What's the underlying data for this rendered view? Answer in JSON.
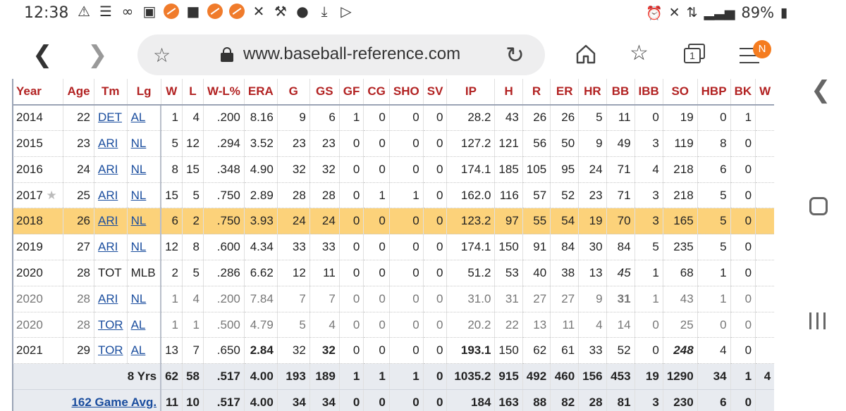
{
  "status_bar": {
    "time": "12:38",
    "battery": "89%"
  },
  "browser": {
    "url": "www.baseball-reference.com",
    "menu_badge": "N",
    "tabs_count": "1"
  },
  "table": {
    "headers": [
      "Year",
      "Age",
      "Tm",
      "Lg",
      "W",
      "L",
      "W-L%",
      "ERA",
      "G",
      "GS",
      "GF",
      "CG",
      "SHO",
      "SV",
      "IP",
      "H",
      "R",
      "ER",
      "HR",
      "BB",
      "IBB",
      "SO",
      "HBP",
      "BK",
      "W"
    ],
    "rows": [
      {
        "year": "2014",
        "age": "22",
        "tm": "DET",
        "lg": "AL",
        "w": "1",
        "l": "4",
        "wl": ".200",
        "era": "8.16",
        "g": "9",
        "gs": "6",
        "gf": "1",
        "cg": "0",
        "sho": "0",
        "sv": "0",
        "ip": "28.2",
        "h": "43",
        "r": "26",
        "er": "26",
        "hr": "5",
        "bb": "11",
        "ibb": "0",
        "so": "19",
        "hbp": "0",
        "bk": "1"
      },
      {
        "year": "2015",
        "age": "23",
        "tm": "ARI",
        "lg": "NL",
        "w": "5",
        "l": "12",
        "wl": ".294",
        "era": "3.52",
        "g": "23",
        "gs": "23",
        "gf": "0",
        "cg": "0",
        "sho": "0",
        "sv": "0",
        "ip": "127.2",
        "h": "121",
        "r": "56",
        "er": "50",
        "hr": "9",
        "bb": "49",
        "ibb": "3",
        "so": "119",
        "hbp": "8",
        "bk": "0"
      },
      {
        "year": "2016",
        "age": "24",
        "tm": "ARI",
        "lg": "NL",
        "w": "8",
        "l": "15",
        "wl": ".348",
        "era": "4.90",
        "g": "32",
        "gs": "32",
        "gf": "0",
        "cg": "0",
        "sho": "0",
        "sv": "0",
        "ip": "174.1",
        "h": "185",
        "r": "105",
        "er": "95",
        "hr": "24",
        "bb": "71",
        "ibb": "4",
        "so": "218",
        "hbp": "6",
        "bk": "0"
      },
      {
        "year": "2017",
        "age": "25",
        "tm": "ARI",
        "lg": "NL",
        "w": "15",
        "l": "5",
        "wl": ".750",
        "era": "2.89",
        "g": "28",
        "gs": "28",
        "gf": "0",
        "cg": "1",
        "sho": "1",
        "sv": "0",
        "ip": "162.0",
        "h": "116",
        "r": "57",
        "er": "52",
        "hr": "23",
        "bb": "71",
        "ibb": "3",
        "so": "218",
        "hbp": "5",
        "bk": "0"
      },
      {
        "year": "2018",
        "age": "26",
        "tm": "ARI",
        "lg": "NL",
        "w": "6",
        "l": "2",
        "wl": ".750",
        "era": "3.93",
        "g": "24",
        "gs": "24",
        "gf": "0",
        "cg": "0",
        "sho": "0",
        "sv": "0",
        "ip": "123.2",
        "h": "97",
        "r": "55",
        "er": "54",
        "hr": "19",
        "bb": "70",
        "ibb": "3",
        "so": "165",
        "hbp": "5",
        "bk": "0"
      },
      {
        "year": "2019",
        "age": "27",
        "tm": "ARI",
        "lg": "NL",
        "w": "12",
        "l": "8",
        "wl": ".600",
        "era": "4.34",
        "g": "33",
        "gs": "33",
        "gf": "0",
        "cg": "0",
        "sho": "0",
        "sv": "0",
        "ip": "174.1",
        "h": "150",
        "r": "91",
        "er": "84",
        "hr": "30",
        "bb": "84",
        "ibb": "5",
        "so": "235",
        "hbp": "5",
        "bk": "0"
      },
      {
        "year": "2020",
        "age": "28",
        "tm": "TOT",
        "lg": "MLB",
        "w": "2",
        "l": "5",
        "wl": ".286",
        "era": "6.62",
        "g": "12",
        "gs": "11",
        "gf": "0",
        "cg": "0",
        "sho": "0",
        "sv": "0",
        "ip": "51.2",
        "h": "53",
        "r": "40",
        "er": "38",
        "hr": "13",
        "bb": "45",
        "ibb": "1",
        "so": "68",
        "hbp": "1",
        "bk": "0"
      },
      {
        "year": "2020",
        "age": "28",
        "tm": "ARI",
        "lg": "NL",
        "w": "1",
        "l": "4",
        "wl": ".200",
        "era": "7.84",
        "g": "7",
        "gs": "7",
        "gf": "0",
        "cg": "0",
        "sho": "0",
        "sv": "0",
        "ip": "31.0",
        "h": "31",
        "r": "27",
        "er": "27",
        "hr": "9",
        "bb": "31",
        "ibb": "1",
        "so": "43",
        "hbp": "1",
        "bk": "0"
      },
      {
        "year": "2020",
        "age": "28",
        "tm": "TOR",
        "lg": "AL",
        "w": "1",
        "l": "1",
        "wl": ".500",
        "era": "4.79",
        "g": "5",
        "gs": "4",
        "gf": "0",
        "cg": "0",
        "sho": "0",
        "sv": "0",
        "ip": "20.2",
        "h": "22",
        "r": "13",
        "er": "11",
        "hr": "4",
        "bb": "14",
        "ibb": "0",
        "so": "25",
        "hbp": "0",
        "bk": "0"
      },
      {
        "year": "2021",
        "age": "29",
        "tm": "TOR",
        "lg": "AL",
        "w": "13",
        "l": "7",
        "wl": ".650",
        "era": "2.84",
        "g": "32",
        "gs": "32",
        "gf": "0",
        "cg": "0",
        "sho": "0",
        "sv": "0",
        "ip": "193.1",
        "h": "150",
        "r": "62",
        "er": "61",
        "hr": "33",
        "bb": "52",
        "ibb": "0",
        "so": "248",
        "hbp": "4",
        "bk": "0"
      }
    ],
    "totals": {
      "label": "8 Yrs",
      "w": "62",
      "l": "58",
      "wl": ".517",
      "era": "4.00",
      "g": "193",
      "gs": "189",
      "gf": "1",
      "cg": "1",
      "sho": "1",
      "sv": "0",
      "ip": "1035.2",
      "h": "915",
      "r": "492",
      "er": "460",
      "hr": "156",
      "bb": "453",
      "ibb": "19",
      "so": "1290",
      "hbp": "34",
      "bk": "1",
      "extra": "4"
    },
    "avg162": {
      "label": "162 Game Avg.",
      "w": "11",
      "l": "10",
      "wl": ".517",
      "era": "4.00",
      "g": "34",
      "gs": "34",
      "gf": "0",
      "cg": "0",
      "sho": "0",
      "sv": "0",
      "ip": "184",
      "h": "163",
      "r": "88",
      "er": "82",
      "hr": "28",
      "bb": "81",
      "ibb": "3",
      "so": "230",
      "hbp": "6",
      "bk": "0"
    }
  }
}
